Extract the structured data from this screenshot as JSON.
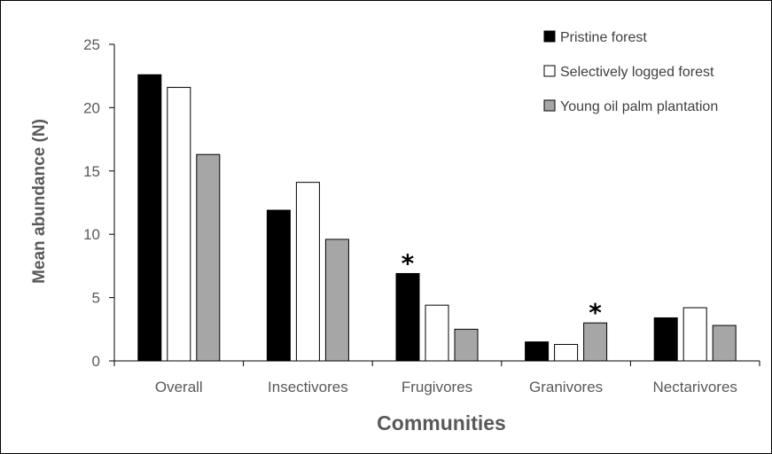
{
  "chart_data": {
    "type": "bar",
    "title": "",
    "xlabel": "Communities",
    "ylabel": "Mean abundance (N)",
    "ylim": [
      0,
      25
    ],
    "yticks": [
      0,
      5,
      10,
      15,
      20,
      25
    ],
    "grid": false,
    "legend_position": "top-right",
    "categories": [
      "Overall",
      "Insectivores",
      "Frugivores",
      "Granivores",
      "Nectarivores"
    ],
    "series": [
      {
        "name": "Pristine forest",
        "color": "#000000",
        "values": [
          22.6,
          11.9,
          6.9,
          1.5,
          3.4
        ]
      },
      {
        "name": "Selectively logged forest",
        "color": "#ffffff",
        "values": [
          21.6,
          14.1,
          4.4,
          1.3,
          4.2
        ]
      },
      {
        "name": "Young oil palm plantation",
        "color": "#a6a6a6",
        "values": [
          16.3,
          9.6,
          2.5,
          3.0,
          2.8
        ]
      }
    ],
    "annotations": [
      {
        "text": "*",
        "category": "Frugivores",
        "series": "Pristine forest"
      },
      {
        "text": "*",
        "category": "Granivores",
        "series": "Young oil palm plantation"
      }
    ]
  }
}
